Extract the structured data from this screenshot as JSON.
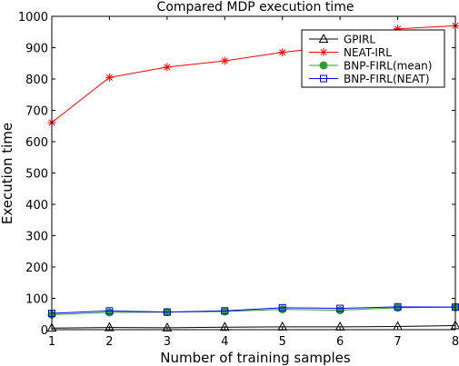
{
  "chart_data": {
    "type": "line",
    "title": "Compared MDP execution time",
    "xlabel": "Number of training samples",
    "ylabel": "Execution time",
    "xlim": [
      1,
      8
    ],
    "ylim": [
      0,
      1000
    ],
    "x": [
      1,
      2,
      3,
      4,
      5,
      6,
      7,
      8
    ],
    "xticks": [
      "1",
      "2",
      "3",
      "4",
      "5",
      "6",
      "7",
      "8"
    ],
    "yticks": [
      "0",
      "100",
      "200",
      "300",
      "400",
      "500",
      "600",
      "700",
      "800",
      "900",
      "1000"
    ],
    "grid": false,
    "legend_position": "top-right",
    "series": [
      {
        "name": "GPIRL",
        "color": "#000000",
        "marker": "triangle",
        "values": [
          5,
          7,
          6,
          8,
          9,
          9,
          10,
          13
        ]
      },
      {
        "name": "NEAT-IRL",
        "color": "#ff0000",
        "marker": "star",
        "values": [
          661,
          805,
          838,
          858,
          885,
          905,
          960,
          970
        ]
      },
      {
        "name": "BNP-FIRL(mean)",
        "color": "#2ca02c",
        "marker": "circle",
        "values": [
          48,
          55,
          56,
          58,
          65,
          62,
          70,
          72
        ]
      },
      {
        "name": "BNP-FIRL(NEAT)",
        "color": "#0000ff",
        "marker": "square",
        "values": [
          52,
          60,
          56,
          60,
          70,
          68,
          73,
          72
        ]
      }
    ]
  }
}
